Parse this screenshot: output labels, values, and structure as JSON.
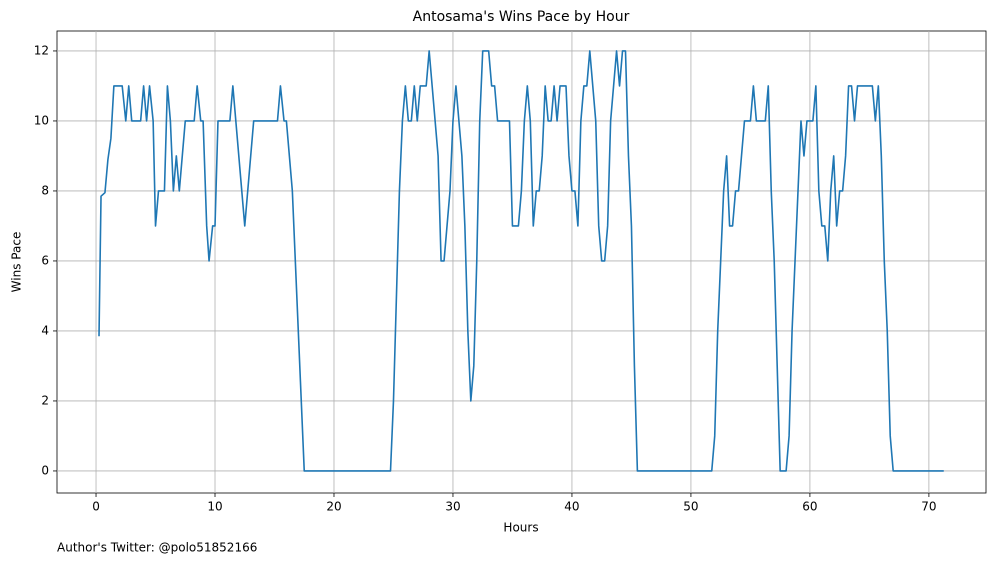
{
  "chart_data": {
    "type": "line",
    "title": "Antosama's Wins Pace by Hour",
    "xlabel": "Hours",
    "ylabel": "Wins Pace",
    "annotation": "Author's Twitter: @polo51852166",
    "color": "#1f77b4",
    "grid": true,
    "xlim": [
      -3.28,
      74.8
    ],
    "ylim": [
      -0.63,
      12.57
    ],
    "xticks": [
      0,
      10,
      20,
      30,
      40,
      50,
      60,
      70
    ],
    "yticks": [
      0,
      2,
      4,
      6,
      8,
      10,
      12
    ],
    "x": [
      0.25,
      0.42,
      0.75,
      1.0,
      1.25,
      1.5,
      2.2,
      2.5,
      2.75,
      3.0,
      3.75,
      4.0,
      4.25,
      4.5,
      4.8,
      5.0,
      5.25,
      5.75,
      6.0,
      6.25,
      6.5,
      6.75,
      7.0,
      7.25,
      7.5,
      8.25,
      8.5,
      8.8,
      9.0,
      9.3,
      9.5,
      9.8,
      10.0,
      10.25,
      11.25,
      11.5,
      12.5,
      13.25,
      15.25,
      15.5,
      15.8,
      16.0,
      16.5,
      17.0,
      17.5,
      24.75,
      25.0,
      25.5,
      25.75,
      26.0,
      26.25,
      26.5,
      26.75,
      27.0,
      27.25,
      27.75,
      28.0,
      28.25,
      28.75,
      29.0,
      29.25,
      29.75,
      30.0,
      30.25,
      30.5,
      30.75,
      31.0,
      31.25,
      31.5,
      31.75,
      32.0,
      32.25,
      32.5,
      33.0,
      33.25,
      33.5,
      33.75,
      34.75,
      35.0,
      35.5,
      35.75,
      36.0,
      36.25,
      36.5,
      36.75,
      37.0,
      37.25,
      37.5,
      37.75,
      38.0,
      38.25,
      38.5,
      38.75,
      39.0,
      39.5,
      39.75,
      40.0,
      40.25,
      40.5,
      40.75,
      41.0,
      41.25,
      41.5,
      42.0,
      42.25,
      42.5,
      42.75,
      43.0,
      43.25,
      43.75,
      44.0,
      44.25,
      44.5,
      44.75,
      45.0,
      45.25,
      45.5,
      51.75,
      52.0,
      52.25,
      52.5,
      52.75,
      53.0,
      53.25,
      53.5,
      53.75,
      54.0,
      54.25,
      54.5,
      55.0,
      55.25,
      55.5,
      56.25,
      56.5,
      56.75,
      57.0,
      57.25,
      57.5,
      58.0,
      58.25,
      58.5,
      58.75,
      59.0,
      59.25,
      59.5,
      59.75,
      60.25,
      60.5,
      60.75,
      61.0,
      61.25,
      61.5,
      61.75,
      62.0,
      62.25,
      62.5,
      62.75,
      63.0,
      63.25,
      63.5,
      63.75,
      64.0,
      65.25,
      65.5,
      65.75,
      66.0,
      66.25,
      66.5,
      66.75,
      67.0,
      71.25
    ],
    "values": [
      3.85,
      7.85,
      7.95,
      8.9,
      9.5,
      11,
      11,
      10,
      11,
      10,
      10,
      11,
      10,
      11,
      10,
      7,
      8,
      8,
      11,
      10,
      8,
      9,
      8,
      9,
      10,
      10,
      11,
      10,
      10,
      7,
      6,
      7,
      7,
      10,
      10,
      11,
      7,
      10,
      10,
      11,
      10,
      10,
      8,
      4,
      0,
      0,
      2,
      8,
      10,
      11,
      10,
      10,
      11,
      10,
      11,
      11,
      12,
      11,
      9,
      6,
      6,
      8,
      10,
      11,
      10,
      9,
      7,
      4,
      2,
      3,
      6,
      10,
      12,
      12,
      11,
      11,
      10,
      10,
      7,
      7,
      8,
      10,
      11,
      10,
      7,
      8,
      8,
      9,
      11,
      10,
      10,
      11,
      10,
      11,
      11,
      9,
      8,
      8,
      7,
      10,
      11,
      11,
      12,
      10,
      7,
      6,
      6,
      7,
      10,
      12,
      11,
      12,
      12,
      9,
      7,
      3,
      0,
      0,
      1,
      4,
      6,
      8,
      9,
      7,
      7,
      8,
      8,
      9,
      10,
      10,
      11,
      10,
      10,
      11,
      8,
      6,
      3,
      0,
      0,
      1,
      4,
      6,
      8,
      10,
      9,
      10,
      10,
      11,
      8,
      7,
      7,
      6,
      8,
      9,
      7,
      8,
      8,
      9,
      11,
      11,
      10,
      11,
      11,
      10,
      11,
      9,
      6,
      4,
      1,
      0,
      0
    ]
  }
}
